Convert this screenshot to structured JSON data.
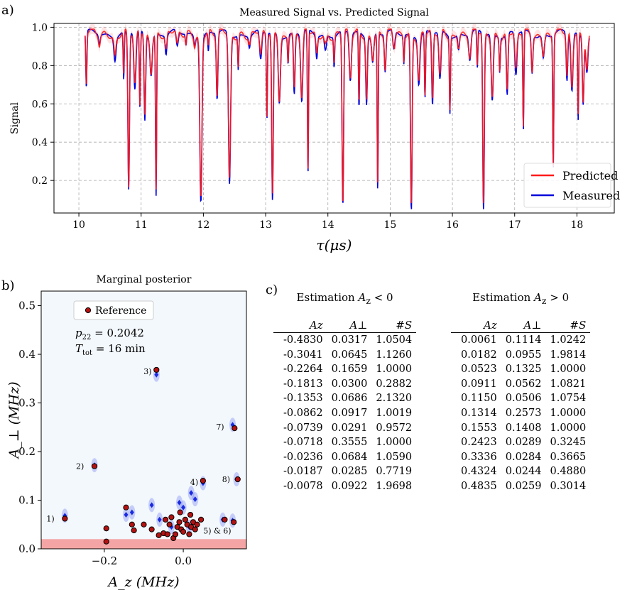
{
  "panels": {
    "a": "a)",
    "b": "b)",
    "c": "c)"
  },
  "chart_data": [
    {
      "type": "line",
      "title": "Measured Signal vs. Predicted Signal",
      "xlabel": "τ(μs)",
      "ylabel": "Signal",
      "xlim": [
        9.6,
        18.6
      ],
      "ylim": [
        0.03,
        1.02
      ],
      "xticks": [
        "10",
        "11",
        "12",
        "13",
        "14",
        "15",
        "16",
        "17",
        "18"
      ],
      "yticks": [
        "0.2",
        "0.4",
        "0.6",
        "0.8",
        "1.0"
      ],
      "grid": true,
      "legend": "bottom-right",
      "x_range": [
        10.1,
        18.2
      ],
      "baseline": 0.965,
      "dips": [
        {
          "x": 10.12,
          "depth": 0.3
        },
        {
          "x": 10.33,
          "depth": 0.05
        },
        {
          "x": 10.58,
          "depth": 0.12
        },
        {
          "x": 10.72,
          "depth": 0.25
        },
        {
          "x": 10.8,
          "depth": 0.82
        },
        {
          "x": 10.9,
          "depth": 0.3
        },
        {
          "x": 10.98,
          "depth": 0.4
        },
        {
          "x": 11.06,
          "depth": 0.45
        },
        {
          "x": 11.16,
          "depth": 0.2
        },
        {
          "x": 11.24,
          "depth": 0.84
        },
        {
          "x": 11.4,
          "depth": 0.1
        },
        {
          "x": 11.58,
          "depth": 0.08
        },
        {
          "x": 11.72,
          "depth": 0.06
        },
        {
          "x": 11.86,
          "depth": 0.05
        },
        {
          "x": 11.96,
          "depth": 0.86
        },
        {
          "x": 12.08,
          "depth": 0.1
        },
        {
          "x": 12.22,
          "depth": 0.35
        },
        {
          "x": 12.42,
          "depth": 0.78
        },
        {
          "x": 12.56,
          "depth": 0.18
        },
        {
          "x": 12.74,
          "depth": 0.06
        },
        {
          "x": 12.92,
          "depth": 0.15
        },
        {
          "x": 13.02,
          "depth": 0.45
        },
        {
          "x": 13.11,
          "depth": 0.88
        },
        {
          "x": 13.22,
          "depth": 0.35
        },
        {
          "x": 13.36,
          "depth": 0.15
        },
        {
          "x": 13.46,
          "depth": 0.32
        },
        {
          "x": 13.58,
          "depth": 0.36
        },
        {
          "x": 13.68,
          "depth": 0.75
        },
        {
          "x": 13.82,
          "depth": 0.12
        },
        {
          "x": 13.96,
          "depth": 0.08
        },
        {
          "x": 14.1,
          "depth": 0.16
        },
        {
          "x": 14.24,
          "depth": 0.92
        },
        {
          "x": 14.36,
          "depth": 0.25
        },
        {
          "x": 14.5,
          "depth": 0.4
        },
        {
          "x": 14.62,
          "depth": 0.35
        },
        {
          "x": 14.72,
          "depth": 0.14
        },
        {
          "x": 14.8,
          "depth": 0.83
        },
        {
          "x": 14.92,
          "depth": 0.2
        },
        {
          "x": 15.06,
          "depth": 0.1
        },
        {
          "x": 15.22,
          "depth": 0.15
        },
        {
          "x": 15.34,
          "depth": 0.93
        },
        {
          "x": 15.46,
          "depth": 0.25
        },
        {
          "x": 15.56,
          "depth": 0.35
        },
        {
          "x": 15.68,
          "depth": 0.38
        },
        {
          "x": 15.8,
          "depth": 0.25
        },
        {
          "x": 15.96,
          "depth": 0.4
        },
        {
          "x": 16.1,
          "depth": 0.08
        },
        {
          "x": 16.28,
          "depth": 0.14
        },
        {
          "x": 16.4,
          "depth": 0.2
        },
        {
          "x": 16.5,
          "depth": 0.94
        },
        {
          "x": 16.64,
          "depth": 0.35
        },
        {
          "x": 16.76,
          "depth": 0.18
        },
        {
          "x": 16.88,
          "depth": 0.32
        },
        {
          "x": 17.02,
          "depth": 0.22
        },
        {
          "x": 17.14,
          "depth": 0.52
        },
        {
          "x": 17.28,
          "depth": 0.2
        },
        {
          "x": 17.46,
          "depth": 0.12
        },
        {
          "x": 17.62,
          "depth": 0.7
        },
        {
          "x": 17.84,
          "depth": 0.25
        },
        {
          "x": 17.92,
          "depth": 0.3
        },
        {
          "x": 18.02,
          "depth": 0.45
        },
        {
          "x": 18.1,
          "depth": 0.35
        },
        {
          "x": 18.16,
          "depth": 0.18
        }
      ],
      "series": [
        {
          "name": "Predicted",
          "color": "#ff1a1a"
        },
        {
          "name": "Measured",
          "color": "#0000dd"
        }
      ]
    },
    {
      "type": "scatter",
      "title": "Marginal posterior",
      "xlabel": "A_z (MHz)",
      "ylabel": "A_⊥ (MHz)",
      "xlim": [
        -0.36,
        0.16
      ],
      "ylim": [
        0,
        0.53
      ],
      "xticks": [
        -0.2,
        0.0
      ],
      "xtick_labels": [
        "−0.2",
        "0.0"
      ],
      "yticks": [
        0.0,
        0.1,
        0.2,
        0.3,
        0.4,
        0.5
      ],
      "ytick_labels": [
        "0.0",
        "0.1",
        "0.2",
        "0.3",
        "0.4",
        "0.5"
      ],
      "legend": "top-left",
      "legend_label": "Reference",
      "p22_label": "p",
      "p22_sub": "22",
      "p22_value": "= 0.2042",
      "ttot_label": "T",
      "ttot_sub": "tot",
      "ttot_value": "= 16 min",
      "excluded_band": [
        0,
        0.02
      ],
      "reference_points": [
        [
          -0.3,
          0.062
        ],
        [
          -0.225,
          0.17
        ],
        [
          -0.068,
          0.368
        ],
        [
          0.05,
          0.14
        ],
        [
          0.13,
          0.248
        ],
        [
          0.138,
          0.143
        ],
        [
          0.128,
          0.055
        ],
        [
          0.105,
          0.06
        ],
        [
          -0.195,
          0.015
        ],
        [
          -0.195,
          0.042
        ],
        [
          -0.145,
          0.085
        ],
        [
          -0.13,
          0.05
        ],
        [
          -0.125,
          0.038
        ],
        [
          -0.1,
          0.05
        ],
        [
          -0.08,
          0.04
        ],
        [
          -0.062,
          0.028
        ],
        [
          -0.05,
          0.032
        ],
        [
          -0.04,
          0.03
        ],
        [
          -0.035,
          0.05
        ],
        [
          -0.03,
          0.065
        ],
        [
          -0.025,
          0.022
        ],
        [
          -0.02,
          0.03
        ],
        [
          -0.015,
          0.045
        ],
        [
          -0.01,
          0.055
        ],
        [
          -0.005,
          0.04
        ],
        [
          0.0,
          0.035
        ],
        [
          0.005,
          0.06
        ],
        [
          0.01,
          0.05
        ],
        [
          0.015,
          0.03
        ],
        [
          0.02,
          0.045
        ],
        [
          0.025,
          0.055
        ],
        [
          0.03,
          0.04
        ],
        [
          0.035,
          0.05
        ],
        [
          -0.045,
          0.06
        ],
        [
          0.045,
          0.06
        ],
        [
          -0.008,
          0.075
        ],
        [
          0.018,
          0.07
        ]
      ],
      "posterior_points": [
        [
          -0.3,
          0.068
        ],
        [
          -0.225,
          0.172
        ],
        [
          -0.068,
          0.358
        ],
        [
          0.05,
          0.135
        ],
        [
          0.125,
          0.255
        ],
        [
          0.135,
          0.143
        ],
        [
          0.125,
          0.058
        ],
        [
          0.1,
          0.06
        ],
        [
          -0.145,
          0.07
        ],
        [
          -0.13,
          0.075
        ],
        [
          -0.08,
          0.09
        ],
        [
          -0.06,
          0.06
        ],
        [
          -0.01,
          0.095
        ],
        [
          0.0,
          0.085
        ],
        [
          0.02,
          0.115
        ],
        [
          0.03,
          0.102
        ],
        [
          -0.03,
          0.045
        ],
        [
          0.015,
          0.045
        ]
      ],
      "annotations": [
        {
          "text": "1)",
          "x": -0.3,
          "y": 0.062
        },
        {
          "text": "2)",
          "x": -0.225,
          "y": 0.17
        },
        {
          "text": "3)",
          "x": -0.068,
          "y": 0.368
        },
        {
          "text": "4)",
          "x": 0.05,
          "y": 0.14
        },
        {
          "text": "7)",
          "x": 0.13,
          "y": 0.248
        },
        {
          "text": "8)",
          "x": 0.138,
          "y": 0.143
        },
        {
          "text": "5) & 6)",
          "x": 0.128,
          "y": 0.055
        }
      ]
    }
  ],
  "tables": {
    "negative": {
      "title_prefix": "Estimation ",
      "title_var": "A",
      "title_sub": "z",
      "title_rel": " < 0",
      "headers": [
        "Az",
        "A⊥",
        "#S"
      ],
      "rows": [
        [
          "-0.4830",
          "0.0317",
          "1.0504"
        ],
        [
          "-0.3041",
          "0.0645",
          "1.1260"
        ],
        [
          "-0.2264",
          "0.1659",
          "1.0000"
        ],
        [
          "-0.1813",
          "0.0300",
          "0.2882"
        ],
        [
          "-0.1353",
          "0.0686",
          "2.1320"
        ],
        [
          "-0.0862",
          "0.0917",
          "1.0019"
        ],
        [
          "-0.0739",
          "0.0291",
          "0.9572"
        ],
        [
          "-0.0718",
          "0.3555",
          "1.0000"
        ],
        [
          "-0.0236",
          "0.0684",
          "1.0590"
        ],
        [
          "-0.0187",
          "0.0285",
          "0.7719"
        ],
        [
          "-0.0078",
          "0.0922",
          "1.9698"
        ]
      ]
    },
    "positive": {
      "title_prefix": "Estimation ",
      "title_var": "A",
      "title_sub": "z",
      "title_rel": " > 0",
      "headers": [
        "Az",
        "A⊥",
        "#S"
      ],
      "rows": [
        [
          "0.0061",
          "0.1114",
          "1.0242"
        ],
        [
          "0.0182",
          "0.0955",
          "1.9814"
        ],
        [
          "0.0523",
          "0.1325",
          "1.0000"
        ],
        [
          "0.0911",
          "0.0562",
          "1.0821"
        ],
        [
          "0.1150",
          "0.0506",
          "1.0754"
        ],
        [
          "0.1314",
          "0.2573",
          "1.0000"
        ],
        [
          "0.1553",
          "0.1408",
          "1.0000"
        ],
        [
          "0.2423",
          "0.0289",
          "0.3245"
        ],
        [
          "0.3336",
          "0.0284",
          "0.3665"
        ],
        [
          "0.4324",
          "0.0244",
          "0.4880"
        ],
        [
          "0.4835",
          "0.0259",
          "0.3014"
        ]
      ]
    }
  }
}
